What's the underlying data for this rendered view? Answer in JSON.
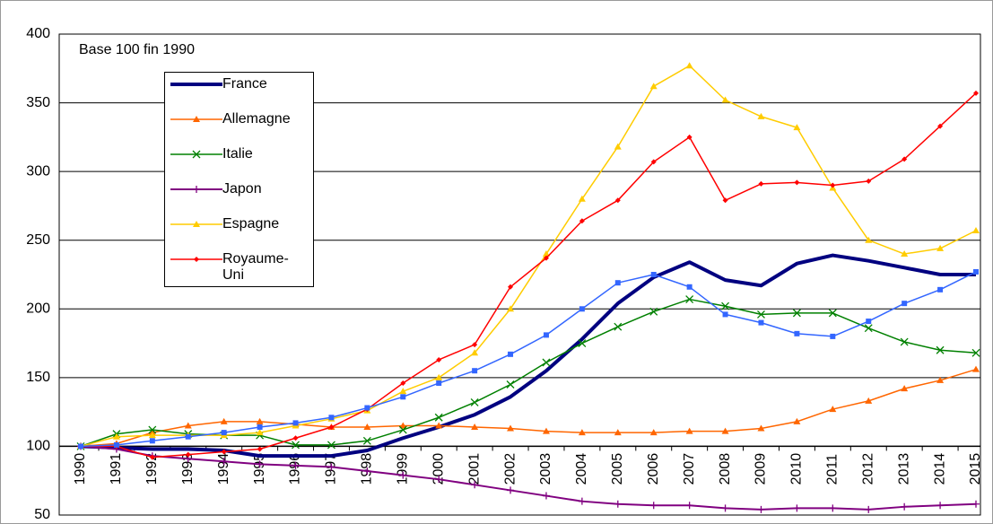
{
  "chart_data": {
    "type": "line",
    "annotation": "Base 100 fin 1990",
    "categories": [
      "1990",
      "1991",
      "1992",
      "1993",
      "1994",
      "1995",
      "1996",
      "1997",
      "1998",
      "1999",
      "2000",
      "2001",
      "2002",
      "2003",
      "2004",
      "2005",
      "2006",
      "2007",
      "2008",
      "2009",
      "2010",
      "2011",
      "2012",
      "2013",
      "2014",
      "2015"
    ],
    "series": [
      {
        "name": "France",
        "color": "#000080",
        "width": 4,
        "marker": "none",
        "values": [
          100,
          99,
          98,
          98,
          97,
          93,
          93,
          93,
          97,
          106,
          114,
          123,
          136,
          155,
          178,
          204,
          223,
          234,
          221,
          217,
          233,
          239,
          235,
          230,
          225,
          225
        ]
      },
      {
        "name": "Allemagne",
        "color": "#ff6600",
        "width": 1.5,
        "marker": "triangle",
        "values": [
          100,
          102,
          110,
          115,
          118,
          118,
          116,
          114,
          114,
          115,
          115,
          114,
          113,
          111,
          110,
          110,
          110,
          111,
          111,
          113,
          118,
          127,
          133,
          142,
          148,
          156
        ]
      },
      {
        "name": "Italie",
        "color": "#008000",
        "width": 1.5,
        "marker": "x",
        "values": [
          100,
          109,
          112,
          109,
          108,
          108,
          101,
          101,
          104,
          112,
          121,
          132,
          145,
          161,
          175,
          187,
          198,
          207,
          202,
          196,
          197,
          197,
          186,
          176,
          170,
          168
        ]
      },
      {
        "name": "Japon",
        "color": "#800080",
        "width": 2,
        "marker": "plus",
        "values": [
          100,
          98,
          93,
          91,
          89,
          87,
          86,
          85,
          82,
          79,
          76,
          72,
          68,
          64,
          60,
          58,
          57,
          57,
          55,
          54,
          55,
          55,
          54,
          56,
          57,
          58
        ]
      },
      {
        "name": "Espagne",
        "color": "#ffcc00",
        "width": 1.5,
        "marker": "triangle",
        "values": [
          100,
          107,
          108,
          108,
          108,
          110,
          115,
          120,
          126,
          140,
          150,
          168,
          200,
          240,
          280,
          318,
          362,
          377,
          352,
          340,
          332,
          288,
          250,
          240,
          244,
          257
        ]
      },
      {
        "name": "Royaume-Uni",
        "color": "#ff0000",
        "width": 1.5,
        "marker": "diamond",
        "values": [
          100,
          100,
          92,
          94,
          96,
          98,
          106,
          114,
          127,
          146,
          163,
          174,
          216,
          237,
          264,
          279,
          307,
          325,
          279,
          291,
          292,
          290,
          293,
          309,
          333,
          357
        ]
      },
      {
        "color": "#3366ff",
        "width": 1.5,
        "marker": "square",
        "values": [
          100,
          101,
          104,
          107,
          110,
          114,
          117,
          121,
          128,
          136,
          146,
          155,
          167,
          181,
          200,
          219,
          225,
          216,
          196,
          190,
          182,
          180,
          191,
          204,
          214,
          227
        ]
      }
    ],
    "ylim": [
      50,
      400
    ],
    "yticks": [
      50,
      100,
      150,
      200,
      250,
      300,
      350,
      400
    ],
    "grid": true,
    "x_axis_at": 100
  }
}
